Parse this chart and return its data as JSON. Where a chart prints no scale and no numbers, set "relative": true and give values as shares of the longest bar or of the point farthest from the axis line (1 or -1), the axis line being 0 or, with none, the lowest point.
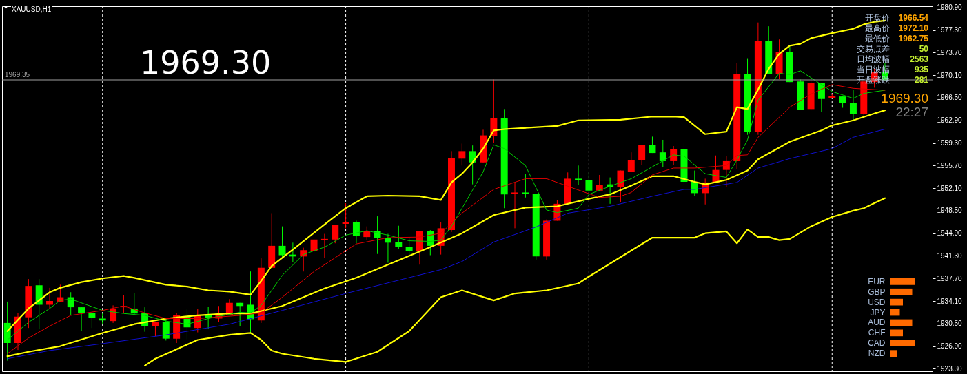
{
  "chart_data": [
    {
      "type": "candlestick",
      "title": "XAUUSD,H1",
      "tick_labels": "y",
      "grid": "x",
      "categories": [
        null,
        null,
        null,
        null,
        null,
        null,
        null,
        null,
        null,
        null,
        null,
        null,
        null,
        null,
        null,
        null,
        null,
        null,
        null,
        null,
        null,
        null,
        null,
        null,
        null,
        null,
        null,
        null,
        null,
        null,
        null,
        null,
        null,
        null,
        null,
        null,
        null,
        null,
        null,
        null,
        null,
        null,
        null,
        null,
        null,
        null,
        null,
        null,
        null,
        null,
        null,
        null,
        null,
        null,
        null,
        null,
        null,
        null,
        null,
        null,
        null,
        null,
        null,
        null,
        null,
        null,
        null,
        null,
        null,
        null,
        null,
        null,
        null,
        null,
        null,
        null,
        null,
        null,
        null,
        null,
        null,
        null,
        null,
        null
      ],
      "ohlc": [
        [
          1930.6,
          1934.0,
          1924.6,
          1927.4
        ],
        [
          1927.4,
          1932.2,
          1926.3,
          1931.6
        ],
        [
          1931.5,
          1937.6,
          1929.8,
          1936.5
        ],
        [
          1936.6,
          1937.6,
          1929.7,
          1933.5
        ],
        [
          1933.5,
          1936.2,
          1932.8,
          1934.1
        ],
        [
          1934.0,
          1936.7,
          1934.0,
          1934.7
        ],
        [
          1934.7,
          1935.5,
          1931.9,
          1933.1
        ],
        [
          1933.1,
          1933.1,
          1929.3,
          1932.2
        ],
        [
          1932.2,
          1932.2,
          1929.8,
          1931.4
        ],
        [
          1931.3,
          1932.2,
          1930.4,
          1931.0
        ],
        [
          1930.9,
          1933.4,
          1930.6,
          1932.9
        ],
        [
          1933.1,
          1935.0,
          1932.2,
          1933.3
        ],
        [
          1932.9,
          1935.4,
          1931.8,
          1932.1
        ],
        [
          1932.2,
          1933.1,
          1929.2,
          1930.1
        ],
        [
          1930.1,
          1930.8,
          1928.5,
          1930.8
        ],
        [
          1930.8,
          1931.3,
          1927.8,
          1928.1
        ],
        [
          1928.1,
          1932.2,
          1927.4,
          1931.8
        ],
        [
          1931.7,
          1932.8,
          1928.0,
          1929.9
        ],
        [
          1929.8,
          1932.8,
          1929.1,
          1931.8
        ],
        [
          1931.8,
          1933.2,
          1929.6,
          1931.4
        ],
        [
          1931.3,
          1933.3,
          1930.7,
          1932.1
        ],
        [
          1931.9,
          1934.4,
          1931.9,
          1933.8
        ],
        [
          1933.8,
          1933.8,
          1930.1,
          1933.3
        ],
        [
          1933.5,
          1938.8,
          1929.0,
          1931.2
        ],
        [
          1931.0,
          1940.9,
          1930.6,
          1939.4
        ],
        [
          1939.4,
          1948.1,
          1939.4,
          1942.9
        ],
        [
          1942.9,
          1946.0,
          1941.1,
          1941.4
        ],
        [
          1941.5,
          1943.4,
          1940.3,
          1941.2
        ],
        [
          1941.2,
          1942.6,
          1938.8,
          1942.2
        ],
        [
          1942.1,
          1943.9,
          1941.8,
          1943.9
        ],
        [
          1943.8,
          1944.8,
          1941.0,
          1944.0
        ],
        [
          1943.9,
          1946.2,
          1943.3,
          1946.2
        ],
        [
          1946.4,
          1949.7,
          1945.7,
          1946.7
        ],
        [
          1946.7,
          1946.9,
          1943.3,
          1944.5
        ],
        [
          1944.3,
          1946.0,
          1943.8,
          1945.3
        ],
        [
          1945.3,
          1947.6,
          1941.6,
          1944.1
        ],
        [
          1944.2,
          1944.8,
          1940.2,
          1943.4
        ],
        [
          1943.5,
          1946.1,
          1942.4,
          1942.7
        ],
        [
          1942.7,
          1944.2,
          1941.3,
          1942.1
        ],
        [
          1942.1,
          1945.2,
          1939.9,
          1945.2
        ],
        [
          1945.2,
          1945.4,
          1941.4,
          1942.9
        ],
        [
          1942.9,
          1946.7,
          1941.5,
          1945.7
        ],
        [
          1945.4,
          1958.0,
          1945.1,
          1956.9
        ],
        [
          1956.8,
          1959.2,
          1955.7,
          1958.0
        ],
        [
          1958.0,
          1958.9,
          1952.7,
          1956.2
        ],
        [
          1956.2,
          1961.4,
          1956.2,
          1960.5
        ],
        [
          1960.4,
          1969.4,
          1959.3,
          1963.2
        ],
        [
          1963.2,
          1964.7,
          1948.9,
          1951.1
        ],
        [
          1951.2,
          1953.0,
          1945.7,
          1951.4
        ],
        [
          1951.4,
          1954.3,
          1950.6,
          1951.2
        ],
        [
          1951.2,
          1951.2,
          1940.7,
          1941.2
        ],
        [
          1941.2,
          1947.1,
          1940.7,
          1946.9
        ],
        [
          1946.9,
          1950.2,
          1946.9,
          1949.6
        ],
        [
          1949.6,
          1954.6,
          1949.6,
          1953.6
        ],
        [
          1953.6,
          1955.7,
          1952.6,
          1953.4
        ],
        [
          1953.4,
          1954.6,
          1951.1,
          1951.7
        ],
        [
          1951.7,
          1954.2,
          1951.7,
          1952.6
        ],
        [
          1952.7,
          1953.8,
          1949.6,
          1952.3
        ],
        [
          1952.3,
          1954.9,
          1949.9,
          1954.9
        ],
        [
          1954.7,
          1957.8,
          1954.7,
          1956.6
        ],
        [
          1956.5,
          1959.0,
          1955.8,
          1959.0
        ],
        [
          1959.0,
          1960.3,
          1957.7,
          1957.7
        ],
        [
          1957.8,
          1959.8,
          1955.5,
          1956.4
        ],
        [
          1956.4,
          1958.8,
          1955.8,
          1958.3
        ],
        [
          1958.3,
          1959.4,
          1952.6,
          1953.1
        ],
        [
          1953.1,
          1954.9,
          1950.8,
          1951.3
        ],
        [
          1951.3,
          1953.6,
          1949.5,
          1953.0
        ],
        [
          1953.0,
          1957.3,
          1953.0,
          1955.0
        ],
        [
          1955.0,
          1957.2,
          1952.3,
          1956.4
        ],
        [
          1956.4,
          1972.0,
          1955.1,
          1970.3
        ],
        [
          1970.3,
          1972.8,
          1960.6,
          1961.1
        ],
        [
          1961.1,
          1978.5,
          1960.6,
          1975.5
        ],
        [
          1975.5,
          1977.9,
          1970.3,
          1970.3
        ],
        [
          1970.3,
          1975.8,
          1969.5,
          1973.8
        ],
        [
          1973.8,
          1974.6,
          1969.0,
          1969.0
        ],
        [
          1969.1,
          1969.4,
          1964.6,
          1964.6
        ],
        [
          1964.7,
          1969.3,
          1964.5,
          1968.8
        ],
        [
          1968.8,
          1968.8,
          1964.2,
          1966.3
        ],
        [
          1966.5,
          1967.1,
          1966.5,
          1966.8
        ],
        [
          1966.7,
          1966.7,
          1964.9,
          1965.7
        ],
        [
          1965.7,
          1967.7,
          1962.8,
          1963.9
        ],
        [
          1963.9,
          1969.4,
          1963.7,
          1969.1
        ],
        [
          1969.0,
          1971.2,
          1968.1,
          1970.6
        ],
        [
          1970.6,
          1972.1,
          1969.3,
          1969.3
        ]
      ],
      "colors": [
        "#00ff00",
        "#ff0000",
        "#ff0000",
        "#00ff00",
        "#ff0000",
        "#ff0000",
        "#00ff00",
        "#00ff00",
        "#00ff00",
        "#00ff00",
        "#ff0000",
        "#ff0000",
        "#00ff00",
        "#00ff00",
        "#ff0000",
        "#00ff00",
        "#ff0000",
        "#00ff00",
        "#ff0000",
        "#00ff00",
        "#ff0000",
        "#ff0000",
        "#00ff00",
        "#00ff00",
        "#ff0000",
        "#ff0000",
        "#00ff00",
        "#00ff00",
        "#ff0000",
        "#ff0000",
        "#ff0000",
        "#ff0000",
        "#ff0000",
        "#00ff00",
        "#ff0000",
        "#00ff00",
        "#00ff00",
        "#00ff00",
        "#00ff00",
        "#ff0000",
        "#00ff00",
        "#ff0000",
        "#ff0000",
        "#ff0000",
        "#00ff00",
        "#ff0000",
        "#ff0000",
        "#00ff00",
        "#ff0000",
        "#00ff00",
        "#00ff00",
        "#ff0000",
        "#ff0000",
        "#ff0000",
        "#00ff00",
        "#00ff00",
        "#ff0000",
        "#00ff00",
        "#ff0000",
        "#ff0000",
        "#ff0000",
        "#00ff00",
        "#00ff00",
        "#ff0000",
        "#00ff00",
        "#00ff00",
        "#ff0000",
        "#ff0000",
        "#ff0000",
        "#ff0000",
        "#00ff00",
        "#ff0000",
        "#00ff00",
        "#ff0000",
        "#00ff00",
        "#00ff00",
        "#ff0000",
        "#00ff00",
        "#ff0000",
        "#00ff00",
        "#00ff00",
        "#ff0000",
        "#ff0000",
        "#00ff00"
      ],
      "series": [
        {
          "type": "line",
          "color": "#ffff00",
          "values": [
            1929.3,
            null,
            1932.9,
            null,
            1935.5,
            1936.2,
            null,
            1937.1,
            null,
            1937.7,
            null,
            1938.1,
            1937.8,
            null,
            null,
            1936.7,
            null,
            1936.4,
            null,
            1935.8,
            null,
            1935.6,
            null,
            1935.1,
            1937.3,
            1939.7,
            null,
            1942.3,
            null,
            null,
            1946.3,
            null,
            1948.9,
            null,
            1950.8,
            null,
            1950.9,
            null,
            null,
            1950.8,
            null,
            1950.2,
            1953.0,
            1954.4,
            1956.2,
            1958.4,
            1961.3,
            1961.5,
            null,
            null,
            null,
            null,
            1962.0,
            null,
            1962.9,
            null,
            null,
            null,
            1963.0,
            null,
            null,
            1963.5,
            null,
            1963.5,
            1963.4,
            null,
            1960.7,
            null,
            1961.1,
            1965.0,
            1964.7,
            1967.8,
            1971.1,
            1973.5,
            1974.8,
            1975.1,
            1976.0,
            null,
            1976.8,
            null,
            1977.5,
            1978.2,
            1978.6,
            1978.8
          ]
        },
        {
          "type": "line",
          "color": "#ffff00",
          "values": [
            1925.3,
            null,
            1926.0,
            null,
            null,
            1926.9,
            null,
            null,
            null,
            1929.0,
            null,
            null,
            1930.4,
            null,
            null,
            1931.3,
            null,
            null,
            1931.8,
            null,
            null,
            1932.1,
            null,
            1932.1,
            null,
            null,
            1933.3,
            null,
            null,
            null,
            1936.1,
            null,
            null,
            1937.8,
            null,
            null,
            null,
            null,
            null,
            null,
            1942.7,
            null,
            null,
            1944.9,
            null,
            null,
            1947.8,
            null,
            null,
            1949.0,
            null,
            null,
            1949.2,
            null,
            null,
            1950.4,
            null,
            1951.1,
            null,
            1952.5,
            null,
            1954.0,
            null,
            1954.0,
            null,
            1953.1,
            1952.7,
            null,
            1953.4,
            null,
            1954.9,
            1956.7,
            null,
            null,
            1959.5,
            null,
            null,
            1961.3,
            1962.1,
            null,
            1962.9,
            null,
            1964.0,
            1964.5
          ]
        },
        {
          "type": "line",
          "color": "#ffff00",
          "values": [
            null,
            null,
            null,
            null,
            null,
            null,
            null,
            null,
            null,
            null,
            null,
            null,
            null,
            1923.8,
            1924.9,
            null,
            null,
            null,
            1927.9,
            null,
            null,
            1928.7,
            null,
            1929.0,
            1927.9,
            1926.2,
            1925.7,
            null,
            null,
            1924.9,
            null,
            null,
            1924.4,
            null,
            null,
            1926.0,
            null,
            null,
            1929.3,
            null,
            null,
            1934.7,
            null,
            1935.8,
            null,
            null,
            1934.2,
            null,
            1935.3,
            null,
            null,
            1935.8,
            null,
            null,
            1936.9,
            1938.0,
            null,
            null,
            1941.1,
            null,
            null,
            1944.2,
            null,
            null,
            1944.2,
            1944.2,
            1944.9,
            null,
            1945.2,
            1943.3,
            1945.5,
            1944.3,
            1944.3,
            1943.8,
            1944.0,
            null,
            1946.0,
            null,
            1947.5,
            null,
            1948.5,
            1948.9,
            null,
            1950.5
          ]
        },
        {
          "type": "line",
          "color": "#00d000",
          "values": [
            1927.9,
            null,
            1930.7,
            null,
            1932.9,
            1934.2,
            1934.4,
            null,
            null,
            1932.6,
            null,
            1932.1,
            null,
            1931.8,
            null,
            1930.9,
            null,
            1930.4,
            null,
            1931.3,
            null,
            null,
            1932.3,
            1932.2,
            1933.4,
            null,
            1938.2,
            null,
            1941.5,
            null,
            1942.7,
            null,
            1944.6,
            null,
            1945.3,
            null,
            1944.6,
            null,
            1943.7,
            null,
            1943.6,
            1943.8,
            1946.0,
            1948.9,
            null,
            1954.7,
            1959.0,
            1958.4,
            null,
            1955.7,
            null,
            1948.6,
            1948.2,
            null,
            1948.9,
            1951.1,
            null,
            1952.4,
            null,
            1953.6,
            null,
            1955.5,
            null,
            1957.4,
            1957.2,
            null,
            1954.4,
            null,
            1953.8,
            1956.6,
            1959.8,
            1966.1,
            null,
            1970.4,
            1970.2,
            1970.8,
            1969.7,
            null,
            1967.5,
            null,
            1966.4,
            1967.2,
            null,
            1967.7
          ]
        },
        {
          "type": "line",
          "color": "#e00000",
          "values": [
            1925.7,
            null,
            1928.2,
            null,
            1930.1,
            null,
            1931.8,
            null,
            null,
            1932.6,
            null,
            1933.3,
            null,
            1932.2,
            null,
            1931.3,
            null,
            null,
            1931.3,
            null,
            null,
            null,
            1931.8,
            null,
            1932.2,
            null,
            1934.7,
            null,
            null,
            1938.8,
            null,
            null,
            1942.1,
            1943.2,
            null,
            null,
            1944.2,
            null,
            null,
            1944.3,
            null,
            1944.9,
            null,
            1948.1,
            null,
            null,
            1951.9,
            null,
            null,
            1953.6,
            null,
            1953.6,
            null,
            1952.4,
            null,
            null,
            1950.6,
            null,
            1950.8,
            1951.4,
            null,
            1954.2,
            null,
            1955.3,
            null,
            1955.3,
            null,
            null,
            1955.7,
            1957.3,
            1957.4,
            1960.2,
            null,
            null,
            1965.0,
            null,
            1967.1,
            null,
            1968.6,
            null,
            1968.0,
            null,
            1967.8,
            1967.7
          ]
        },
        {
          "type": "line",
          "color": "#1010d0",
          "values": [
            1924.9,
            null,
            null,
            null,
            1926.2,
            null,
            null,
            null,
            null,
            1927.3,
            null,
            null,
            null,
            null,
            null,
            1928.7,
            null,
            null,
            null,
            null,
            null,
            1930.4,
            null,
            null,
            null,
            null,
            1932.6,
            null,
            null,
            null,
            null,
            null,
            1935.3,
            null,
            null,
            null,
            null,
            null,
            null,
            null,
            null,
            1939.1,
            null,
            1940.4,
            null,
            null,
            1943.5,
            null,
            null,
            null,
            1945.9,
            null,
            null,
            1948.1,
            null,
            null,
            null,
            1949.2,
            null,
            null,
            null,
            1950.8,
            null,
            null,
            1951.9,
            1951.9,
            null,
            null,
            null,
            1953.0,
            null,
            1955.3,
            null,
            null,
            1956.8,
            null,
            null,
            null,
            1958.4,
            null,
            1960.2,
            null,
            null,
            1961.5
          ]
        }
      ],
      "ylim": [
        1922.9,
        1981.1
      ],
      "yticks": [
        {
          "value": 1923.3,
          "label": "1923.30"
        },
        {
          "value": 1926.9,
          "label": "1926.90"
        },
        {
          "value": 1930.5,
          "label": "1930.50"
        },
        {
          "value": 1934.1,
          "label": "1934.10"
        },
        {
          "value": 1937.7,
          "label": "1937.70"
        },
        {
          "value": 1941.3,
          "label": "1941.30"
        },
        {
          "value": 1944.9,
          "label": "1944.90"
        },
        {
          "value": 1948.5,
          "label": "1948.50"
        },
        {
          "value": 1952.1,
          "label": "1952.10"
        },
        {
          "value": 1955.7,
          "label": "1955.70"
        },
        {
          "value": 1959.3,
          "label": "1959.30"
        },
        {
          "value": 1962.9,
          "label": "1962.90"
        },
        {
          "value": 1966.5,
          "label": "1966.50"
        },
        {
          "value": 1970.1,
          "label": "1970.10"
        },
        {
          "value": 1973.7,
          "label": "1973.70"
        },
        {
          "value": 1977.3,
          "label": "1977.30"
        },
        {
          "value": 1980.9,
          "label": "1980.90"
        }
      ],
      "ref_lines": [
        {
          "axis": "y",
          "value": 1969.35,
          "label": "1969.35",
          "color": "#a0a0a0"
        }
      ],
      "annotations": [
        "1969.30",
        "开盘价",
        "1966.54",
        "最高价",
        "1972.10",
        "最低价",
        "1962.75",
        "交易点差",
        "50",
        "日均波幅",
        "2563",
        "当日波幅",
        "935",
        "开盘涨跌",
        "281",
        "1969.30",
        "22:27"
      ]
    },
    {
      "type": "bar",
      "orientation": "horizontal",
      "relative": true,
      "categories": [
        "EUR",
        "GBP",
        "USD",
        "JPY",
        "AUD",
        "CHF",
        "CAD",
        "NZD"
      ],
      "values": [
        1,
        0.875,
        0.5,
        0.375,
        0.875,
        0.5,
        1,
        0.25
      ],
      "color": "#ff6a00"
    }
  ]
}
